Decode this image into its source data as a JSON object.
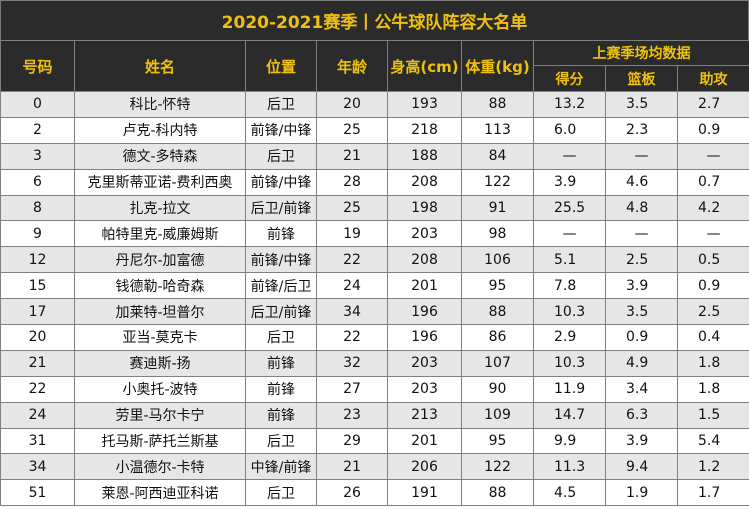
{
  "title": "2020-2021赛季丨公牛球队阵容大名单",
  "headers": {
    "number": "号码",
    "name": "姓名",
    "position": "位置",
    "age": "年龄",
    "height": "身高(cm)",
    "weight": "体重(kg)",
    "stats_group": "上赛季场均数据",
    "points": "得分",
    "rebounds": "篮板",
    "assists": "助攻"
  },
  "rows": [
    {
      "num": "0",
      "name": "科比-怀特",
      "pos": "后卫",
      "age": "20",
      "height": "193",
      "weight": "88",
      "pts": "13.2",
      "reb": "3.5",
      "ast": "2.7"
    },
    {
      "num": "2",
      "name": "卢克-科内特",
      "pos": "前锋/中锋",
      "age": "25",
      "height": "218",
      "weight": "113",
      "pts": "6.0",
      "reb": "2.3",
      "ast": "0.9"
    },
    {
      "num": "3",
      "name": "德文-多特森",
      "pos": "后卫",
      "age": "21",
      "height": "188",
      "weight": "84",
      "pts": "—",
      "reb": "—",
      "ast": "—"
    },
    {
      "num": "6",
      "name": "克里斯蒂亚诺-费利西奥",
      "pos": "前锋/中锋",
      "age": "28",
      "height": "208",
      "weight": "122",
      "pts": "3.9",
      "reb": "4.6",
      "ast": "0.7"
    },
    {
      "num": "8",
      "name": "扎克-拉文",
      "pos": "后卫/前锋",
      "age": "25",
      "height": "198",
      "weight": "91",
      "pts": "25.5",
      "reb": "4.8",
      "ast": "4.2"
    },
    {
      "num": "9",
      "name": "帕特里克-威廉姆斯",
      "pos": "前锋",
      "age": "19",
      "height": "203",
      "weight": "98",
      "pts": "—",
      "reb": "—",
      "ast": "—"
    },
    {
      "num": "12",
      "name": "丹尼尔-加富德",
      "pos": "前锋/中锋",
      "age": "22",
      "height": "208",
      "weight": "106",
      "pts": "5.1",
      "reb": "2.5",
      "ast": "0.5"
    },
    {
      "num": "15",
      "name": "钱德勒-哈奇森",
      "pos": "前锋/后卫",
      "age": "24",
      "height": "201",
      "weight": "95",
      "pts": "7.8",
      "reb": "3.9",
      "ast": "0.9"
    },
    {
      "num": "17",
      "name": "加莱特-坦普尔",
      "pos": "后卫/前锋",
      "age": "34",
      "height": "196",
      "weight": "88",
      "pts": "10.3",
      "reb": "3.5",
      "ast": "2.5"
    },
    {
      "num": "20",
      "name": "亚当-莫克卡",
      "pos": "后卫",
      "age": "22",
      "height": "196",
      "weight": "86",
      "pts": "2.9",
      "reb": "0.9",
      "ast": "0.4"
    },
    {
      "num": "21",
      "name": "赛迪斯-扬",
      "pos": "前锋",
      "age": "32",
      "height": "203",
      "weight": "107",
      "pts": "10.3",
      "reb": "4.9",
      "ast": "1.8"
    },
    {
      "num": "22",
      "name": "小奥托-波特",
      "pos": "前锋",
      "age": "27",
      "height": "203",
      "weight": "90",
      "pts": "11.9",
      "reb": "3.4",
      "ast": "1.8"
    },
    {
      "num": "24",
      "name": "劳里-马尔卡宁",
      "pos": "前锋",
      "age": "23",
      "height": "213",
      "weight": "109",
      "pts": "14.7",
      "reb": "6.3",
      "ast": "1.5"
    },
    {
      "num": "31",
      "name": "托马斯-萨托兰斯基",
      "pos": "后卫",
      "age": "29",
      "height": "201",
      "weight": "95",
      "pts": "9.9",
      "reb": "3.9",
      "ast": "5.4"
    },
    {
      "num": "34",
      "name": "小温德尔-卡特",
      "pos": "中锋/前锋",
      "age": "21",
      "height": "206",
      "weight": "122",
      "pts": "11.3",
      "reb": "9.4",
      "ast": "1.2"
    },
    {
      "num": "51",
      "name": "莱恩-阿西迪亚科诺",
      "pos": "后卫",
      "age": "26",
      "height": "191",
      "weight": "88",
      "pts": "4.5",
      "reb": "1.9",
      "ast": "1.7"
    }
  ]
}
